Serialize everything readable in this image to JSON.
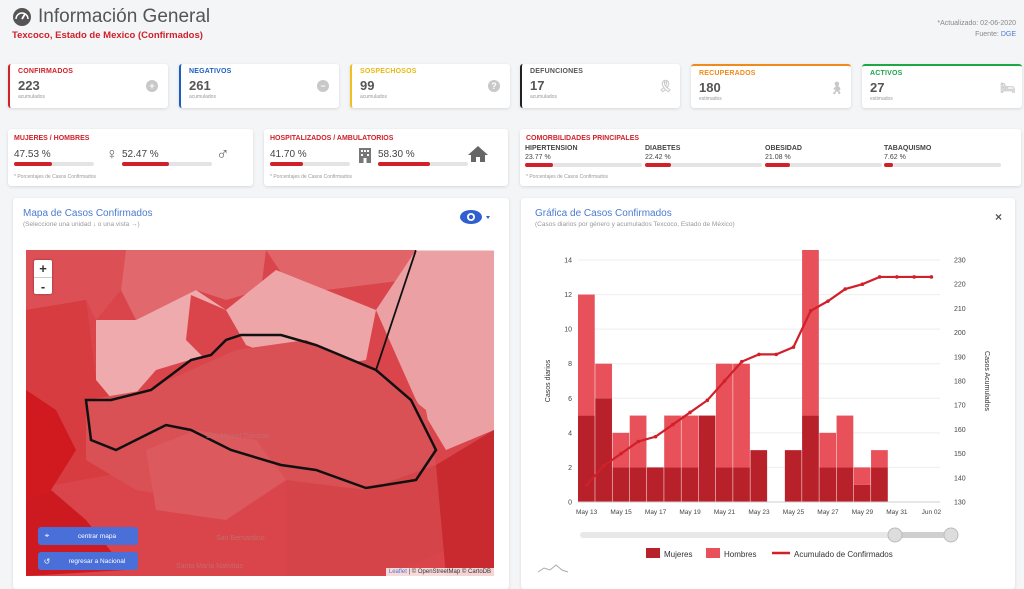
{
  "header": {
    "title": "Información General",
    "subtitle": "Texcoco, Estado de Mexico (Confirmados)",
    "updated": "*Actualizado: 02-06-2020",
    "source_label": "Fuente:",
    "source": "DGE"
  },
  "stats": [
    {
      "label": "CONFIRMADOS",
      "value": "223",
      "sub": "acumulados",
      "color": "#d0202a",
      "icon": "plus-circle-icon"
    },
    {
      "label": "NEGATIVOS",
      "value": "261",
      "sub": "acumulados",
      "color": "#1b5fc4",
      "icon": "minus-circle-icon"
    },
    {
      "label": "SOSPECHOSOS",
      "value": "99",
      "sub": "acumulados",
      "color": "#f0c020",
      "icon": "question-circle-icon"
    },
    {
      "label": "DEFUNCIONES",
      "value": "17",
      "sub": "acumulados",
      "color": "#222222",
      "icon": "ribbon-icon"
    },
    {
      "label": "RECUPERADOS",
      "value": "180",
      "sub": "estimados",
      "color": "#f08a1c",
      "icon": "walking-icon"
    },
    {
      "label": "ACTIVOS",
      "value": "27",
      "sub": "estimados",
      "color": "#1ca845",
      "icon": "bed-icon"
    }
  ],
  "gender": {
    "title": "MUJERES / HOMBRES",
    "women_pct": "47.53 %",
    "men_pct": "52.47 %",
    "women_frac": 0.4753,
    "men_frac": 0.5247,
    "note": "* Porcentajes de Casos Confirmados"
  },
  "hosp": {
    "title": "HOSPITALIZADOS / AMBULATORIOS",
    "hosp_pct": "41.70 %",
    "amb_pct": "58.30 %",
    "hosp_frac": 0.417,
    "amb_frac": 0.583,
    "note": "* Porcentajes de Casos Confirmados"
  },
  "comorb": {
    "title": "COMORBILIDADES PRINCIPALES",
    "items": [
      {
        "label": "HIPERTENSION",
        "pct": "23.77 %",
        "frac": 0.2377
      },
      {
        "label": "DIABETES",
        "pct": "22.42 %",
        "frac": 0.2242
      },
      {
        "label": "OBESIDAD",
        "pct": "21.08 %",
        "frac": 0.2108
      },
      {
        "label": "TABAQUISMO",
        "pct": "7.62 %",
        "frac": 0.0762
      }
    ],
    "note": "* Porcentajes de Casos Confirmados"
  },
  "map_panel": {
    "title": "Mapa de Casos Confirmados",
    "subtitle": "(Seleccione una unidad ↓ o una vista →)",
    "zoom_in": "+",
    "zoom_out": "-",
    "center_btn": "centrar mapa",
    "national_btn": "regresar a Nacional",
    "attribution_a": "Leaflet",
    "attribution_b": " | © OpenStreetMap © CartoDB",
    "place_labels": [
      "San Miguel Tlaixpan",
      "San Bernardino",
      "Santa María Nativitas"
    ]
  },
  "chart_panel": {
    "title": "Gráfica de Casos Confirmados",
    "subtitle": "(Casos diarios por género y acumulados Texcoco, Estado de México)",
    "close": "×"
  },
  "chart_data": {
    "type": "bar",
    "ylabel": "Casos diarios",
    "y2label": "Casos Acumulados",
    "ylim": [
      0,
      14
    ],
    "y2lim": [
      130,
      230
    ],
    "yticks": [
      0,
      2,
      4,
      6,
      8,
      10,
      12,
      14
    ],
    "y2ticks": [
      130,
      140,
      150,
      160,
      170,
      180,
      190,
      200,
      210,
      220,
      230
    ],
    "categories": [
      "May 13",
      "May 14",
      "May 15",
      "May 16",
      "May 17",
      "May 18",
      "May 19",
      "May 20",
      "May 21",
      "May 22",
      "May 23",
      "May 24",
      "May 25",
      "May 26",
      "May 27",
      "May 28",
      "May 29",
      "May 30",
      "May 31",
      "Jun 01",
      "Jun 02"
    ],
    "tick_labels": [
      "May 13",
      "May 15",
      "May 17",
      "May 19",
      "May 21",
      "May 23",
      "May 25",
      "May 27",
      "May 29",
      "May 31",
      "Jun 02"
    ],
    "series": [
      {
        "name": "Mujeres",
        "type": "bar",
        "color": "#b8202a",
        "values": [
          5,
          6,
          2,
          2,
          2,
          2,
          2,
          5,
          2,
          2,
          3,
          0,
          3,
          5,
          2,
          2,
          1,
          2,
          0,
          0,
          0
        ]
      },
      {
        "name": "Hombres",
        "type": "bar",
        "color": "#e8505a",
        "values": [
          7,
          2,
          2,
          3,
          0,
          3,
          3,
          0,
          6,
          6,
          0,
          0,
          0,
          10,
          2,
          3,
          1,
          1,
          0,
          0,
          0
        ]
      },
      {
        "name": "Acumulado de Confirmados",
        "type": "line",
        "color": "#d0202a",
        "values": [
          137,
          145,
          150,
          155,
          157,
          162,
          167,
          172,
          180,
          188,
          191,
          191,
          194,
          209,
          213,
          218,
          220,
          223,
          223,
          223,
          223
        ]
      }
    ],
    "grid": true,
    "legend": "bottom"
  }
}
